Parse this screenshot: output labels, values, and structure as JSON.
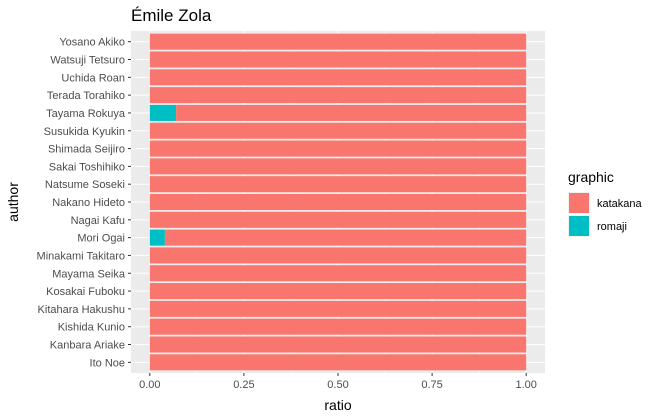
{
  "chart_data": {
    "type": "bar",
    "orientation": "horizontal",
    "stacked": true,
    "title": "Émile Zola",
    "xlabel": "ratio",
    "ylabel": "author",
    "xlim": [
      0,
      1
    ],
    "x_ticks": [
      "0.00",
      "0.25",
      "0.50",
      "0.75",
      "1.00"
    ],
    "x_tick_values": [
      0,
      0.25,
      0.5,
      0.75,
      1
    ],
    "grid": true,
    "legend": {
      "title": "graphic",
      "position": "right"
    },
    "categories": [
      "Yosano Akiko",
      "Watsuji Tetsuro",
      "Uchida Roan",
      "Terada Torahiko",
      "Tayama Rokuya",
      "Susukida Kyukin",
      "Shimada Seijiro",
      "Sakai Toshihiko",
      "Natsume Soseki",
      "Nakano Hideto",
      "Nagai Kafu",
      "Mori Ogai",
      "Minakami Takitaro",
      "Mayama Seika",
      "Kosakai Fuboku",
      "Kitahara Hakushu",
      "Kishida Kunio",
      "Kanbara Ariake",
      "Ito Noe"
    ],
    "series": [
      {
        "name": "katakana",
        "color": "#F8766D",
        "values": [
          1,
          1,
          1,
          1,
          0.93,
          1,
          1,
          1,
          1,
          1,
          1,
          0.96,
          1,
          1,
          1,
          1,
          1,
          1,
          1
        ]
      },
      {
        "name": "romaji",
        "color": "#00BFC4",
        "values": [
          0,
          0,
          0,
          0,
          0.07,
          0,
          0,
          0,
          0,
          0,
          0,
          0.04,
          0,
          0,
          0,
          0,
          0,
          0,
          0
        ]
      }
    ],
    "stack_order_from_zero": [
      "romaji",
      "katakana"
    ]
  }
}
